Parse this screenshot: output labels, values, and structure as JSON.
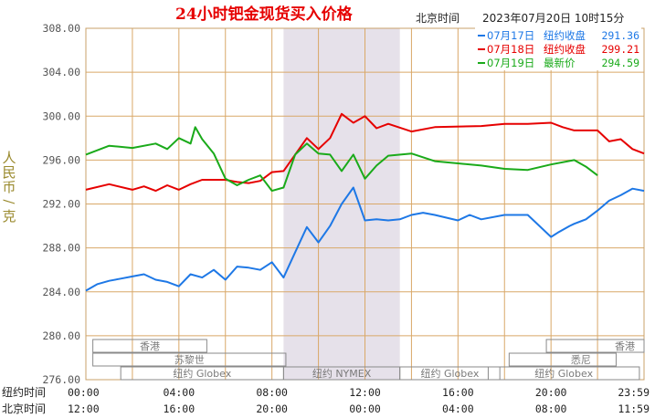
{
  "header": {
    "title": "24小时钯金现货买入价格",
    "timezone_label": "北京时间",
    "timestamp": "2023年07月20日 10时15分"
  },
  "axis": {
    "ylabel": "人民币/克",
    "row_ny_label": "纽约时间",
    "row_bj_label": "北京时间",
    "ny_ticks": [
      "00:00",
      "04:00",
      "08:00",
      "12:00",
      "16:00",
      "20:00",
      "23:59"
    ],
    "bj_ticks": [
      "12:00",
      "16:00",
      "20:00",
      "00:00",
      "04:00",
      "08:00",
      "11:59"
    ]
  },
  "sessions": {
    "row1": [
      "香港",
      "香港"
    ],
    "row2": [
      "苏黎世",
      "悉尼"
    ],
    "row3": [
      "纽约 Globex",
      "纽约 NYMEX",
      "纽约 Globex",
      "纽约 Globex"
    ]
  },
  "legend": [
    {
      "date": "07月17日",
      "label": "纽约收盘",
      "value": "291.36",
      "color": "#1e78e6"
    },
    {
      "date": "07月18日",
      "label": "纽约收盘",
      "value": "299.21",
      "color": "#e60000"
    },
    {
      "date": "07月19日",
      "label": "最新价",
      "value": "294.59",
      "color": "#1aaa1a"
    }
  ],
  "colors": {
    "axis_text": "#555555",
    "grid": "#d9a868",
    "highlight_band": "#e6e1ea",
    "title": "#e60000",
    "label_olive": "#9a8a2e"
  },
  "chart_data": {
    "type": "line",
    "x_unit": "hours (New York time, 0-24)",
    "ylim": [
      276,
      308
    ],
    "yticks": [
      "276.00",
      "280.00",
      "284.00",
      "288.00",
      "292.00",
      "296.00",
      "300.00",
      "304.00",
      "308.00"
    ],
    "grid": true,
    "highlight_range_ny_hours": [
      8.5,
      13.5
    ],
    "series": [
      {
        "name": "07月17日",
        "color": "#1e78e6",
        "points": [
          [
            0,
            284.1
          ],
          [
            0.5,
            284.7
          ],
          [
            1,
            285.0
          ],
          [
            1.5,
            285.2
          ],
          [
            2,
            285.4
          ],
          [
            2.5,
            285.6
          ],
          [
            3,
            285.1
          ],
          [
            3.5,
            284.9
          ],
          [
            4,
            284.5
          ],
          [
            4.5,
            285.6
          ],
          [
            5,
            285.3
          ],
          [
            5.5,
            286.0
          ],
          [
            6,
            285.1
          ],
          [
            6.5,
            286.3
          ],
          [
            7,
            286.2
          ],
          [
            7.5,
            286.0
          ],
          [
            8,
            286.7
          ],
          [
            8.5,
            285.3
          ],
          [
            9,
            287.6
          ],
          [
            9.5,
            289.9
          ],
          [
            10,
            288.5
          ],
          [
            10.5,
            290.0
          ],
          [
            11,
            292.0
          ],
          [
            11.5,
            293.5
          ],
          [
            12,
            290.5
          ],
          [
            12.5,
            290.6
          ],
          [
            13,
            290.5
          ],
          [
            13.5,
            290.6
          ],
          [
            14,
            291.0
          ],
          [
            14.5,
            291.2
          ],
          [
            15,
            291.0
          ],
          [
            16,
            290.5
          ],
          [
            16.5,
            291.0
          ],
          [
            17,
            290.6
          ],
          [
            18,
            291.0
          ],
          [
            19,
            291.0
          ],
          [
            20,
            289.0
          ],
          [
            20.3,
            289.4
          ],
          [
            20.8,
            290.0
          ],
          [
            21,
            290.2
          ],
          [
            21.5,
            290.6
          ],
          [
            22,
            291.4
          ],
          [
            22.5,
            292.3
          ],
          [
            23,
            292.8
          ],
          [
            23.5,
            293.4
          ],
          [
            24,
            293.2
          ]
        ]
      },
      {
        "name": "07月18日",
        "color": "#e60000",
        "points": [
          [
            0,
            293.3
          ],
          [
            1,
            293.8
          ],
          [
            2,
            293.3
          ],
          [
            2.5,
            293.6
          ],
          [
            3,
            293.2
          ],
          [
            3.5,
            293.7
          ],
          [
            4,
            293.3
          ],
          [
            4.5,
            293.8
          ],
          [
            5,
            294.2
          ],
          [
            6,
            294.2
          ],
          [
            6.5,
            294.0
          ],
          [
            7,
            293.9
          ],
          [
            7.5,
            294.1
          ],
          [
            8,
            294.9
          ],
          [
            8.5,
            295.0
          ],
          [
            9,
            296.5
          ],
          [
            9.5,
            298.0
          ],
          [
            10,
            297.0
          ],
          [
            10.5,
            298.0
          ],
          [
            11,
            300.2
          ],
          [
            11.5,
            299.4
          ],
          [
            12,
            300.0
          ],
          [
            12.5,
            298.9
          ],
          [
            13,
            299.3
          ],
          [
            14,
            298.6
          ],
          [
            15,
            299.0
          ],
          [
            17,
            299.1
          ],
          [
            18,
            299.3
          ],
          [
            19,
            299.3
          ],
          [
            20,
            299.4
          ],
          [
            20.5,
            299.0
          ],
          [
            21,
            298.7
          ],
          [
            22,
            298.7
          ],
          [
            22.5,
            297.7
          ],
          [
            23,
            297.9
          ],
          [
            23.5,
            297.0
          ],
          [
            24,
            296.6
          ]
        ]
      },
      {
        "name": "07月19日",
        "color": "#1aaa1a",
        "points": [
          [
            0,
            296.5
          ],
          [
            1,
            297.3
          ],
          [
            2,
            297.1
          ],
          [
            3,
            297.5
          ],
          [
            3.5,
            297.0
          ],
          [
            4,
            298.0
          ],
          [
            4.5,
            297.5
          ],
          [
            4.7,
            299.0
          ],
          [
            5,
            297.9
          ],
          [
            5.5,
            296.6
          ],
          [
            6,
            294.3
          ],
          [
            6.5,
            293.7
          ],
          [
            7,
            294.2
          ],
          [
            7.5,
            294.6
          ],
          [
            8,
            293.2
          ],
          [
            8.5,
            293.5
          ],
          [
            9,
            296.5
          ],
          [
            9.5,
            297.5
          ],
          [
            10,
            296.6
          ],
          [
            10.5,
            296.5
          ],
          [
            11,
            295.0
          ],
          [
            11.5,
            296.5
          ],
          [
            12,
            294.3
          ],
          [
            12.5,
            295.5
          ],
          [
            13,
            296.4
          ],
          [
            14,
            296.6
          ],
          [
            15,
            295.9
          ],
          [
            16,
            295.7
          ],
          [
            17,
            295.5
          ],
          [
            18,
            295.2
          ],
          [
            19,
            295.1
          ],
          [
            20,
            295.6
          ],
          [
            21,
            296.0
          ],
          [
            21.5,
            295.4
          ],
          [
            22,
            294.6
          ]
        ]
      }
    ]
  }
}
